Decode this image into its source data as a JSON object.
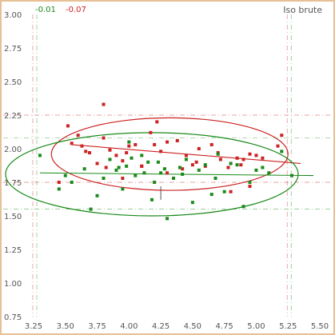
{
  "chart_data": {
    "type": "scatter",
    "title": "",
    "corner_label": "Iso brute",
    "xlabel": "",
    "ylabel": "",
    "xlim": [
      3.25,
      5.5
    ],
    "ylim": [
      0.75,
      3.0
    ],
    "x_ticks": [
      "3.25",
      "3.50",
      "3.75",
      "4.00",
      "4.25",
      "4.50",
      "4.75",
      "5.00",
      "5.25",
      "5.50"
    ],
    "y_ticks": [
      "0.75",
      "1.00",
      "1.25",
      "1.50",
      "1.75",
      "2.00",
      "2.25",
      "2.50",
      "2.75",
      "3.00"
    ],
    "grid": false,
    "border_color": "#e8c096",
    "correlation_labels": [
      {
        "text": "-0.01",
        "color": "#1a8a1a"
      },
      {
        "text": "-0.07",
        "color": "#cc2222"
      }
    ],
    "series": [
      {
        "color": "#cc2222",
        "points": [
          [
            3.52,
            2.17
          ],
          [
            3.55,
            2.04
          ],
          [
            3.63,
            2.02
          ],
          [
            3.66,
            1.98
          ],
          [
            3.69,
            1.97
          ],
          [
            3.75,
            1.89
          ],
          [
            3.8,
            2.08
          ],
          [
            3.82,
            1.86
          ],
          [
            3.85,
            1.99
          ],
          [
            3.9,
            1.95
          ],
          [
            3.95,
            1.91
          ],
          [
            3.98,
            1.97
          ],
          [
            4.0,
            2.02
          ],
          [
            4.05,
            2.03
          ],
          [
            4.1,
            1.87
          ],
          [
            4.17,
            2.12
          ],
          [
            4.2,
            2.03
          ],
          [
            4.25,
            1.98
          ],
          [
            4.3,
            2.05
          ],
          [
            4.38,
            2.06
          ],
          [
            4.45,
            1.95
          ],
          [
            4.53,
            1.9
          ],
          [
            4.55,
            2.0
          ],
          [
            4.6,
            1.87
          ],
          [
            4.65,
            2.03
          ],
          [
            4.7,
            1.97
          ],
          [
            4.72,
            1.92
          ],
          [
            4.78,
            1.86
          ],
          [
            4.85,
            1.93
          ],
          [
            4.88,
            1.88
          ],
          [
            4.95,
            1.96
          ],
          [
            5.05,
            1.93
          ],
          [
            5.17,
            2.02
          ],
          [
            5.2,
            2.1
          ],
          [
            3.8,
            2.33
          ],
          [
            4.22,
            2.2
          ],
          [
            3.6,
            2.1
          ],
          [
            4.1,
            1.87
          ],
          [
            4.5,
            1.88
          ],
          [
            4.42,
            1.85
          ],
          [
            4.9,
            1.92
          ],
          [
            5.0,
            1.95
          ],
          [
            3.95,
            1.78
          ],
          [
            4.3,
            1.82
          ],
          [
            3.45,
            1.75
          ],
          [
            4.8,
            1.68
          ],
          [
            4.95,
            1.72
          ]
        ]
      },
      {
        "color": "#1a8a1a",
        "points": [
          [
            3.3,
            1.95
          ],
          [
            3.45,
            1.7
          ],
          [
            3.5,
            1.8
          ],
          [
            3.55,
            1.75
          ],
          [
            3.65,
            1.85
          ],
          [
            3.7,
            1.55
          ],
          [
            3.75,
            1.65
          ],
          [
            3.8,
            1.78
          ],
          [
            3.85,
            1.92
          ],
          [
            3.9,
            1.84
          ],
          [
            3.92,
            1.86
          ],
          [
            3.95,
            1.7
          ],
          [
            4.0,
            2.05
          ],
          [
            4.02,
            1.93
          ],
          [
            4.05,
            1.8
          ],
          [
            4.1,
            1.95
          ],
          [
            4.12,
            1.82
          ],
          [
            4.15,
            1.9
          ],
          [
            4.18,
            1.62
          ],
          [
            4.2,
            1.75
          ],
          [
            4.25,
            1.82
          ],
          [
            4.28,
            1.85
          ],
          [
            4.3,
            1.48
          ],
          [
            4.35,
            1.78
          ],
          [
            4.4,
            1.86
          ],
          [
            4.45,
            1.92
          ],
          [
            4.5,
            1.6
          ],
          [
            4.55,
            1.84
          ],
          [
            4.6,
            1.88
          ],
          [
            4.65,
            1.66
          ],
          [
            4.7,
            1.96
          ],
          [
            4.75,
            1.68
          ],
          [
            4.8,
            1.89
          ],
          [
            4.85,
            1.88
          ],
          [
            4.9,
            1.57
          ],
          [
            4.95,
            1.75
          ],
          [
            5.0,
            1.84
          ],
          [
            5.05,
            1.86
          ],
          [
            5.1,
            1.82
          ],
          [
            5.28,
            1.8
          ],
          [
            3.98,
            1.87
          ],
          [
            4.42,
            1.81
          ],
          [
            4.23,
            1.9
          ],
          [
            4.68,
            1.78
          ],
          [
            5.2,
            1.98
          ]
        ]
      }
    ],
    "fits": [
      {
        "color": "#cc2222",
        "ellipse": {
          "cx": 4.32,
          "cy": 1.96,
          "rx": 0.93,
          "ry": 0.27
        },
        "line": {
          "x1": 3.55,
          "y1": 2.03,
          "x2": 5.35,
          "y2": 1.89
        },
        "guides_x": [
          3.25,
          5.25
        ],
        "guides_y": [
          2.25,
          1.75
        ]
      },
      {
        "color": "#1a8a1a",
        "ellipse": {
          "cx": 4.18,
          "cy": 1.81,
          "rx": 1.15,
          "ry": 0.31
        },
        "line": {
          "x1": 3.3,
          "y1": 1.82,
          "x2": 5.45,
          "y2": 1.8
        },
        "guides_x": [
          3.25,
          5.25
        ],
        "guides_y": [
          2.08,
          1.55
        ]
      }
    ]
  }
}
